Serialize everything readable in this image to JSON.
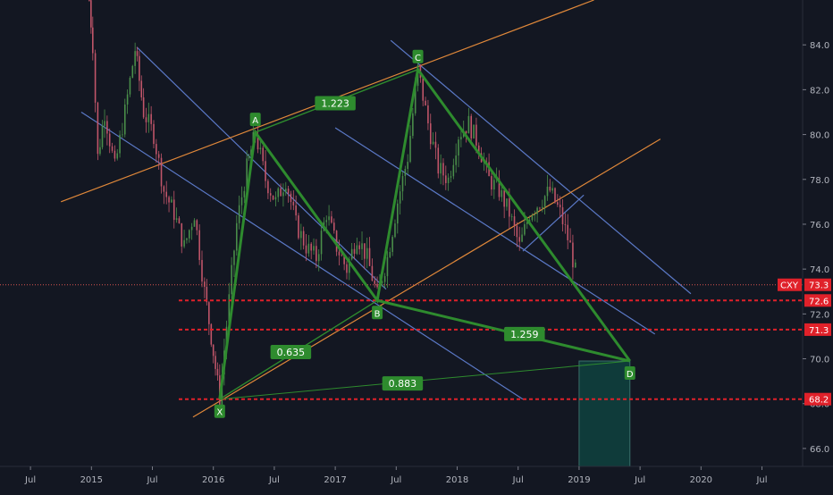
{
  "chart_data": {
    "type": "candlestick",
    "symbol": "CXY",
    "last_price": 73.3,
    "y_axis": {
      "ylim": [
        65.2,
        86.0
      ],
      "ticks": [
        {
          "value": 84.0,
          "label": "84.0"
        },
        {
          "value": 82.0,
          "label": "82.0"
        },
        {
          "value": 80.0,
          "label": "80.0"
        },
        {
          "value": 78.0,
          "label": "78.0"
        },
        {
          "value": 76.0,
          "label": "76.0"
        },
        {
          "value": 74.0,
          "label": "74.0"
        },
        {
          "value": 72.0,
          "label": "72.0"
        },
        {
          "value": 70.0,
          "label": "70.0"
        },
        {
          "value": 68.0,
          "label": "68.0"
        },
        {
          "value": 66.0,
          "label": "66.0"
        }
      ]
    },
    "x_axis": {
      "xlim": [
        "2014-04",
        "2020-11"
      ],
      "ticks": [
        {
          "date": "2014-07",
          "label": "Jul"
        },
        {
          "date": "2015-01",
          "label": "2015"
        },
        {
          "date": "2015-07",
          "label": "Jul"
        },
        {
          "date": "2016-01",
          "label": "2016"
        },
        {
          "date": "2016-07",
          "label": "Jul"
        },
        {
          "date": "2017-01",
          "label": "2017"
        },
        {
          "date": "2017-07",
          "label": "Jul"
        },
        {
          "date": "2018-01",
          "label": "2018"
        },
        {
          "date": "2018-07",
          "label": "Jul"
        },
        {
          "date": "2019-01",
          "label": "2019"
        },
        {
          "date": "2019-07",
          "label": "Jul"
        },
        {
          "date": "2020-01",
          "label": "2020"
        },
        {
          "date": "2020-07",
          "label": "Jul"
        }
      ]
    },
    "price_path": [
      [
        "2014-12-25",
        86.0
      ],
      [
        "2015-01-05",
        84.0
      ],
      [
        "2015-01-20",
        79.0
      ],
      [
        "2015-02-10",
        81.0
      ],
      [
        "2015-03-10",
        78.5
      ],
      [
        "2015-04-10",
        81.0
      ],
      [
        "2015-05-10",
        83.8
      ],
      [
        "2015-06-05",
        81.0
      ],
      [
        "2015-07-05",
        80.0
      ],
      [
        "2015-08-05",
        77.5
      ],
      [
        "2015-09-05",
        76.5
      ],
      [
        "2015-10-05",
        75.0
      ],
      [
        "2015-11-05",
        76.5
      ],
      [
        "2015-12-05",
        73.0
      ],
      [
        "2015-12-25",
        71.0
      ],
      [
        "2016-01-20",
        68.2
      ],
      [
        "2016-02-10",
        71.5
      ],
      [
        "2016-03-10",
        76.0
      ],
      [
        "2016-04-10",
        78.5
      ],
      [
        "2016-05-05",
        80.1
      ],
      [
        "2016-06-05",
        78.0
      ],
      [
        "2016-07-05",
        77.0
      ],
      [
        "2016-08-05",
        78.0
      ],
      [
        "2016-09-05",
        76.0
      ],
      [
        "2016-10-05",
        75.0
      ],
      [
        "2016-11-05",
        74.5
      ],
      [
        "2016-12-05",
        76.5
      ],
      [
        "2017-01-05",
        75.0
      ],
      [
        "2017-02-05",
        74.0
      ],
      [
        "2017-03-05",
        75.5
      ],
      [
        "2017-04-05",
        74.5
      ],
      [
        "2017-05-05",
        72.8
      ],
      [
        "2017-06-05",
        74.5
      ],
      [
        "2017-07-05",
        77.0
      ],
      [
        "2017-08-05",
        79.0
      ],
      [
        "2017-09-05",
        82.9
      ],
      [
        "2017-10-05",
        80.5
      ],
      [
        "2017-11-05",
        78.5
      ],
      [
        "2017-12-05",
        78.0
      ],
      [
        "2018-01-05",
        80.0
      ],
      [
        "2018-02-05",
        80.5
      ],
      [
        "2018-03-05",
        79.5
      ],
      [
        "2018-04-05",
        78.0
      ],
      [
        "2018-05-05",
        77.5
      ],
      [
        "2018-06-05",
        76.5
      ],
      [
        "2018-07-05",
        75.0
      ],
      [
        "2018-08-05",
        76.5
      ],
      [
        "2018-09-05",
        77.0
      ],
      [
        "2018-10-05",
        77.5
      ],
      [
        "2018-11-05",
        76.5
      ],
      [
        "2018-12-05",
        75.0
      ],
      [
        "2018-12-28",
        73.3
      ]
    ],
    "harmonic_pattern": {
      "points": [
        {
          "label": "X",
          "date": "2016-01-20",
          "value": 68.2
        },
        {
          "label": "A",
          "date": "2016-05-05",
          "value": 80.1
        },
        {
          "label": "B",
          "date": "2017-05-05",
          "value": 72.6
        },
        {
          "label": "C",
          "date": "2017-09-05",
          "value": 82.9
        },
        {
          "label": "D",
          "date": "2019-06-01",
          "value": 69.9
        }
      ],
      "ratios": [
        {
          "label": "1.223",
          "date": "2017-01-01",
          "value": 81.4
        },
        {
          "label": "0.635",
          "date": "2016-08-20",
          "value": 70.3
        },
        {
          "label": "1.259",
          "date": "2018-07-20",
          "value": 71.1
        },
        {
          "label": "0.883",
          "date": "2017-07-20",
          "value": 68.9
        }
      ]
    },
    "horizontal_levels": [
      {
        "value": 73.3,
        "label": "73.3",
        "style": "dotted",
        "badge": "CXY"
      },
      {
        "value": 72.6,
        "label": "72.6",
        "style": "dashed"
      },
      {
        "value": 71.3,
        "label": "71.3",
        "style": "dashed"
      },
      {
        "value": 68.2,
        "label": "68.2",
        "style": "dashed"
      }
    ],
    "channels": [
      {
        "color": "#5b79c7",
        "from": [
          "2015-05-15",
          83.9
        ],
        "to": [
          "2017-06-01",
          73.1
        ]
      },
      {
        "color": "#5b79c7",
        "from": [
          "2014-12-01",
          81.0
        ],
        "to": [
          "2018-07-15",
          68.2
        ]
      },
      {
        "color": "#5b79c7",
        "from": [
          "2017-01-01",
          80.3
        ],
        "to": [
          "2019-08-15",
          71.1
        ]
      },
      {
        "color": "#5b79c7",
        "from": [
          "2017-06-15",
          84.2
        ],
        "to": [
          "2019-12-01",
          72.9
        ]
      },
      {
        "color": "#5b79c7",
        "from": [
          "2018-07-15",
          74.8
        ],
        "to": [
          "2019-01-15",
          77.3
        ]
      },
      {
        "color": "#e0883a",
        "from": [
          "2014-10-01",
          77.0
        ],
        "to": [
          "2019-02-15",
          86.0
        ]
      },
      {
        "color": "#e0883a",
        "from": [
          "2015-11-01",
          67.4
        ],
        "to": [
          "2019-09-01",
          79.8
        ]
      }
    ],
    "projection_box": {
      "from": [
        "2019-01-01",
        69.9
      ],
      "to": [
        "2019-06-01",
        65.2
      ],
      "color": "#0f3b3a"
    }
  }
}
